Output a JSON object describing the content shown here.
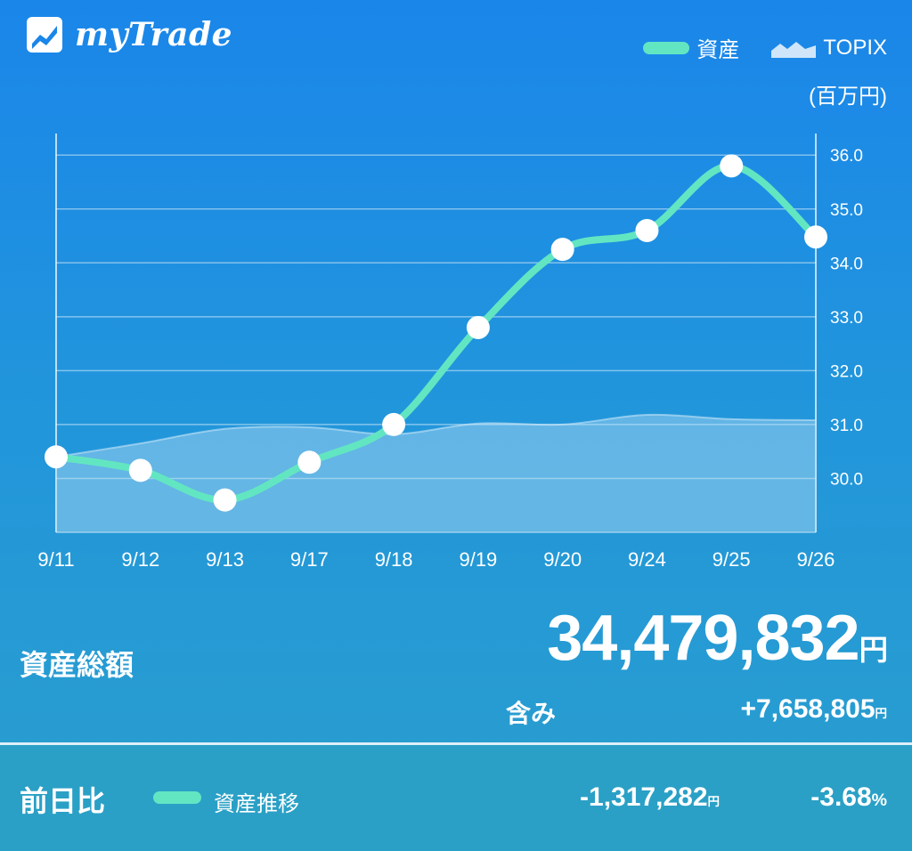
{
  "app": {
    "title": "myTrade",
    "logo_icon": "chart-logo-icon"
  },
  "legend": {
    "asset_label": "資産",
    "topix_label": "TOPIX",
    "asset_color": "#62e6c2",
    "topix_color": "#cfe6fa"
  },
  "chart_data": {
    "type": "line",
    "unit_label": "(百万円)",
    "categories": [
      "9/11",
      "9/12",
      "9/13",
      "9/17",
      "9/18",
      "9/19",
      "9/20",
      "9/24",
      "9/25",
      "9/26"
    ],
    "series": [
      {
        "name": "資産",
        "type": "line",
        "values": [
          30.4,
          30.15,
          29.6,
          30.3,
          31.0,
          32.8,
          34.25,
          34.6,
          35.8,
          34.48
        ]
      },
      {
        "name": "TOPIX",
        "type": "area",
        "values": [
          30.4,
          30.65,
          30.92,
          30.95,
          30.82,
          31.02,
          31.0,
          31.18,
          31.1,
          31.08
        ]
      }
    ],
    "y_axis": {
      "ticks": [
        "30.0",
        "31.0",
        "32.0",
        "33.0",
        "34.0",
        "35.0",
        "36.0"
      ],
      "min": 29.0,
      "max": 36.4,
      "position": "right"
    },
    "grid": true,
    "legend_position": "top-right"
  },
  "summary": {
    "total_label": "資産総額",
    "total_value": "34,479,832",
    "yen": "円",
    "included_label": "含み",
    "unrealized_gain": "+7,658,805"
  },
  "footer": {
    "prev_day_label": "前日比",
    "legend_label": "資産推移",
    "diff_value": "-1,317,282",
    "diff_percent": "-3.68",
    "percent_sign": "%"
  }
}
